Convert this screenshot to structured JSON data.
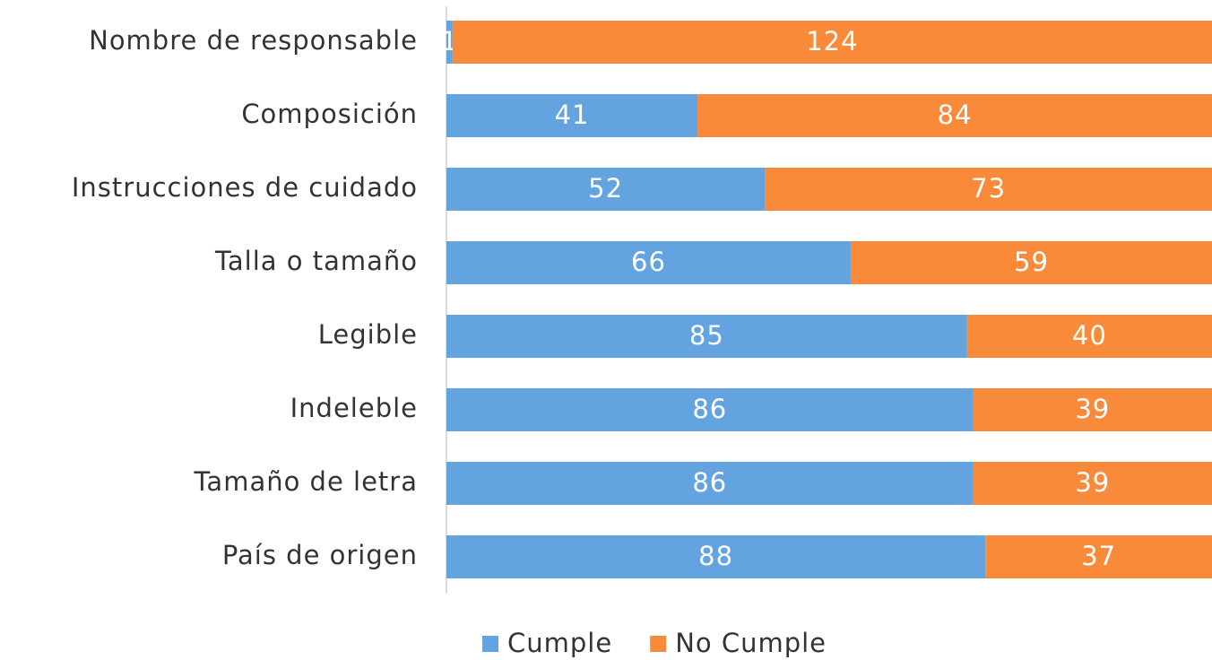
{
  "chart_data": {
    "type": "stacked_bar_horizontal",
    "categories": [
      "Nombre de responsable",
      "Composición",
      "Instrucciones de cuidado",
      "Talla o tamaño",
      "Legible",
      "Indeleble",
      "Tamaño de letra",
      "País de origen"
    ],
    "series": [
      {
        "name": "Cumple",
        "color": "#62a3e0",
        "values": [
          1,
          41,
          52,
          66,
          85,
          86,
          86,
          88
        ]
      },
      {
        "name": "No Cumple",
        "color": "#f98a3a",
        "values": [
          124,
          84,
          73,
          59,
          40,
          39,
          39,
          37
        ]
      }
    ],
    "legend": "bottom"
  }
}
